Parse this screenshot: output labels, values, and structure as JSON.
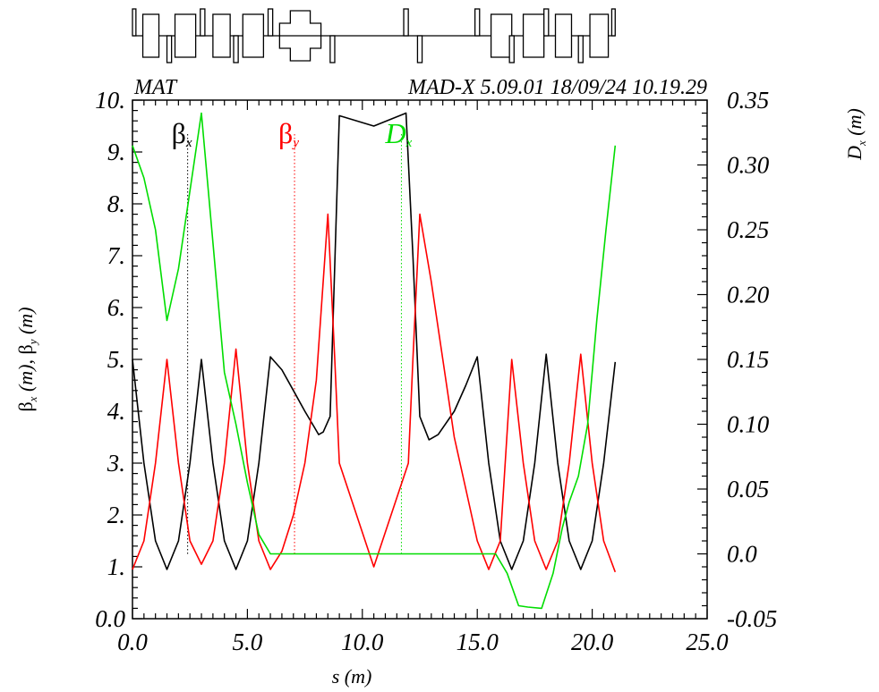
{
  "header": {
    "left": "MAT",
    "right": "MAD-X 5.09.01  18/09/24 10.19.29"
  },
  "chart_data": {
    "type": "line",
    "title": "",
    "xlabel": "s (m)",
    "ylabel_left": "βx (m), βy (m)",
    "ylabel_left_parts": {
      "beta": "β",
      "x": "x",
      "mid": " (m), ",
      "y": "y",
      "unit": " (m)"
    },
    "ylabel_right": "Dx (m)",
    "ylabel_right_parts": {
      "d": "D",
      "x": "x",
      "unit": " (m)"
    },
    "xlim": [
      0,
      25
    ],
    "ylim_left": [
      0,
      10
    ],
    "ylim_right": [
      -0.05,
      0.35
    ],
    "x_tick_labels": [
      "0.0",
      "5.0",
      "10.0",
      "15.0",
      "20.0",
      "25.0"
    ],
    "y_left_tick_labels": [
      "0.0",
      "1.",
      "2.",
      "3.",
      "4.",
      "5.",
      "6.",
      "7.",
      "8.",
      "9.",
      "10."
    ],
    "y_right_tick_labels": [
      "-0.05",
      "0.0",
      "0.05",
      "0.10",
      "0.15",
      "0.20",
      "0.25",
      "0.30",
      "0.35"
    ],
    "legend": [
      {
        "symbol": "β",
        "sub": "x",
        "color": "#000000",
        "marker_s": 2.4
      },
      {
        "symbol": "β",
        "sub": "y",
        "color": "#ff0000",
        "marker_s": 7.05
      },
      {
        "symbol": "D",
        "sub": "x",
        "color": "#00dd00",
        "marker_s": 11.7
      }
    ],
    "series": [
      {
        "name": "betx",
        "axis": "left",
        "color": "#000000",
        "x": [
          0.0,
          0.5,
          1.0,
          1.5,
          2.0,
          2.5,
          3.0,
          3.5,
          4.0,
          4.5,
          5.0,
          5.5,
          6.0,
          6.5,
          7.0,
          7.5,
          7.9,
          8.1,
          8.3,
          8.6,
          9.0,
          10.5,
          11.9,
          12.2,
          12.5,
          12.9,
          13.3,
          14.0,
          14.5,
          15.0,
          15.5,
          16.0,
          16.5,
          17.0,
          17.5,
          18.0,
          18.5,
          19.0,
          19.5,
          20.0,
          20.5,
          21.0
        ],
        "y": [
          5.0,
          3.0,
          1.5,
          0.95,
          1.5,
          3.0,
          5.0,
          3.0,
          1.5,
          0.95,
          1.5,
          3.0,
          5.05,
          4.8,
          4.4,
          4.0,
          3.7,
          3.55,
          3.6,
          3.9,
          9.7,
          9.5,
          9.75,
          7.0,
          3.9,
          3.45,
          3.55,
          4.0,
          4.5,
          5.05,
          3.0,
          1.5,
          0.95,
          1.5,
          3.0,
          5.1,
          3.0,
          1.5,
          0.95,
          1.5,
          3.0,
          4.95
        ]
      },
      {
        "name": "bety",
        "axis": "left",
        "color": "#ff0000",
        "x": [
          0.0,
          0.5,
          1.0,
          1.5,
          2.0,
          2.5,
          3.0,
          3.5,
          4.0,
          4.5,
          5.0,
          5.5,
          6.0,
          6.5,
          7.0,
          7.5,
          8.0,
          8.5,
          8.8,
          9.0,
          10.5,
          12.0,
          12.2,
          12.5,
          13.0,
          13.5,
          14.0,
          14.5,
          15.0,
          15.5,
          16.0,
          16.5,
          17.0,
          17.5,
          18.0,
          18.5,
          19.0,
          19.5,
          20.0,
          20.5,
          21.0
        ],
        "y": [
          0.95,
          1.5,
          3.0,
          5.0,
          3.0,
          1.5,
          1.05,
          1.5,
          3.0,
          5.2,
          3.0,
          1.5,
          0.95,
          1.3,
          2.0,
          3.0,
          4.6,
          7.8,
          5.0,
          3.0,
          1.0,
          3.0,
          5.0,
          7.8,
          6.5,
          5.0,
          3.5,
          2.5,
          1.5,
          0.95,
          1.5,
          5.0,
          3.0,
          1.5,
          0.95,
          1.5,
          3.0,
          5.1,
          3.0,
          1.5,
          0.9
        ]
      },
      {
        "name": "dx",
        "axis": "right",
        "color": "#00dd00",
        "x": [
          0.0,
          0.5,
          1.0,
          1.5,
          2.0,
          2.5,
          3.0,
          3.5,
          4.0,
          4.5,
          5.0,
          5.5,
          6.0,
          9.0,
          12.0,
          15.0,
          15.8,
          16.3,
          16.8,
          17.2,
          17.8,
          18.3,
          18.7,
          19.0,
          19.4,
          19.8,
          20.2,
          20.6,
          21.0
        ],
        "y": [
          0.315,
          0.29,
          0.25,
          0.18,
          0.22,
          0.28,
          0.34,
          0.24,
          0.14,
          0.1,
          0.055,
          0.015,
          0.0,
          0.0,
          0.0,
          0.0,
          0.0,
          -0.015,
          -0.04,
          -0.041,
          -0.042,
          -0.015,
          0.02,
          0.04,
          0.06,
          0.1,
          0.18,
          0.25,
          0.315
        ]
      }
    ],
    "lattice_elements": [
      {
        "kind": "dipole",
        "s0": 0.45,
        "s1": 1.15
      },
      {
        "kind": "quad_f",
        "s0": 0.0,
        "s1": 0.15
      },
      {
        "kind": "quad_d",
        "s0": 1.5,
        "s1": 1.7
      },
      {
        "kind": "quad_f",
        "s0": 2.95,
        "s1": 3.15
      },
      {
        "kind": "dipole",
        "s0": 1.85,
        "s1": 2.75
      },
      {
        "kind": "quad_d",
        "s0": 4.4,
        "s1": 4.6
      },
      {
        "kind": "dipole",
        "s0": 3.5,
        "s1": 4.25
      },
      {
        "kind": "quad_f",
        "s0": 5.9,
        "s1": 6.1
      },
      {
        "kind": "dipole",
        "s0": 4.8,
        "s1": 5.7
      },
      {
        "kind": "quad_d",
        "s0": 8.6,
        "s1": 8.8
      },
      {
        "kind": "solenoid",
        "s0": 6.4,
        "s1": 8.2
      },
      {
        "kind": "quad_f",
        "s0": 11.8,
        "s1": 12.0
      },
      {
        "kind": "quad_d",
        "s0": 12.4,
        "s1": 12.6
      },
      {
        "kind": "quad_f",
        "s0": 14.9,
        "s1": 15.1
      },
      {
        "kind": "dipole",
        "s0": 15.6,
        "s1": 16.5
      },
      {
        "kind": "quad_d",
        "s0": 16.4,
        "s1": 16.6
      },
      {
        "kind": "dipole",
        "s0": 17.0,
        "s1": 17.9
      },
      {
        "kind": "quad_f",
        "s0": 17.9,
        "s1": 18.1
      },
      {
        "kind": "dipole",
        "s0": 18.4,
        "s1": 19.1
      },
      {
        "kind": "quad_d",
        "s0": 19.4,
        "s1": 19.6
      },
      {
        "kind": "dipole",
        "s0": 19.9,
        "s1": 20.7
      },
      {
        "kind": "quad_f",
        "s0": 20.85,
        "s1": 21.0
      }
    ]
  }
}
